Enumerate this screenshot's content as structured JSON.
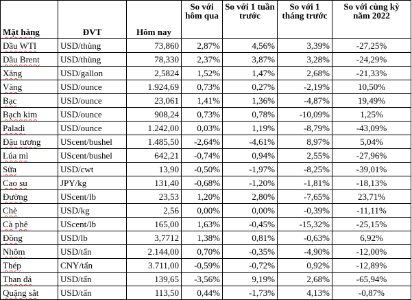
{
  "headers": {
    "item": "Mặt hàng",
    "unit": "ĐVT",
    "today": "Hôm nay",
    "vs_yesterday": "So với hôm qua",
    "vs_week": "So với 1 tuần trước",
    "vs_month": "So với 1 tháng trước",
    "vs_year": "So với cùng kỳ năm 2022"
  },
  "rows": [
    {
      "item": "Dầu WTI",
      "unit": "USD/thùng",
      "today": "73,860",
      "day": "2,87%",
      "week": "4,56%",
      "month": "3,39%",
      "year": "-27,25%"
    },
    {
      "item": "Dầu Brent",
      "unit": "USD/thùng",
      "today": "78,330",
      "day": "2,37%",
      "week": "3,87%",
      "month": "3,28%",
      "year": "-24,29%"
    },
    {
      "item": "Xăng",
      "unit": "USD/gallon",
      "today": "2,5824",
      "day": "1,52%",
      "week": "1,47%",
      "month": "2,68%",
      "year": "-21,33%"
    },
    {
      "item": "Vàng",
      "unit": "USD/ounce",
      "today": "1.924,69",
      "day": "0,73%",
      "week": "0,27%",
      "month": "-2,19%",
      "year": "10,50%"
    },
    {
      "item": "Bạc",
      "unit": "USD/ounce",
      "today": "23,061",
      "day": "1,41%",
      "week": "1,36%",
      "month": "-4,87%",
      "year": "19,49%"
    },
    {
      "item": "Bạch kim",
      "unit": "USD/ounce",
      "today": "908,24",
      "day": "0,73%",
      "week": "0,78%",
      "month": "-10,09%",
      "year": "1,25%"
    },
    {
      "item": "Paladi",
      "unit": "USD/ounce",
      "today": "1.242,00",
      "day": "0,03%",
      "week": "1,19%",
      "month": "-8,79%",
      "year": "-43,09%"
    },
    {
      "item": "Đậu tương",
      "unit": "UScent/bushel",
      "today": "1.485,50",
      "day": "-2,64%",
      "week": "-4,61%",
      "month": "8,97%",
      "year": "5,04%"
    },
    {
      "item": "Lúa mì",
      "unit": "UScent/bushel",
      "today": "642,21",
      "day": "-0,74%",
      "week": "0,94%",
      "month": "2,55%",
      "year": "-27,96%"
    },
    {
      "item": "Sữa",
      "unit": "USD/cwt",
      "today": "13,90",
      "day": "-0,50%",
      "week": "-1,97%",
      "month": "-8,25%",
      "year": "-39,01%"
    },
    {
      "item": "Cao su",
      "unit": "JPY/kg",
      "today": "131,40",
      "day": "-0,68%",
      "week": "-1,20%",
      "month": "-1,81%",
      "year": "-18,13%"
    },
    {
      "item": "Đường",
      "unit": "UScent/lb",
      "today": "23,53",
      "day": "1,20%",
      "week": "2,80%",
      "month": "-7,65%",
      "year": "23,71%"
    },
    {
      "item": "Chè",
      "unit": "USD/kg",
      "today": "2,56",
      "day": "0,00%",
      "week": "0,00%",
      "month": "-0,39%",
      "year": "-11,11%"
    },
    {
      "item": "Cà phê",
      "unit": "UScent/lb",
      "today": "165,00",
      "day": "1,63%",
      "week": "-0,45%",
      "month": "-15,32%",
      "year": "-25,15%"
    },
    {
      "item": "Đồng",
      "unit": "USD/lb",
      "today": "3,7712",
      "day": "1,38%",
      "week": "0,81%",
      "month": "-0,63%",
      "year": "6,92%"
    },
    {
      "item": "Nhôm",
      "unit": "USD/tấn",
      "today": "2.144,00",
      "day": "0,70%",
      "week": "-0,35%",
      "month": "-4,90%",
      "year": "-12,00%"
    },
    {
      "item": "Thép",
      "unit": "CNY/tấn",
      "today": "3.711,00",
      "day": "-0,59%",
      "week": "-0,72%",
      "month": "0,92%",
      "year": "-12,89%"
    },
    {
      "item": "Than đá",
      "unit": "USD/tấn",
      "today": "139,65",
      "day": "-3,56%",
      "week": "9,19%",
      "month": "2,68%",
      "year": "-65,94%"
    },
    {
      "item": "Quặng sắt",
      "unit": "USD/tấn",
      "today": "113,50",
      "day": "0,44%",
      "week": "-1,73%",
      "month": "4,13%",
      "year": "-0,87%"
    }
  ]
}
